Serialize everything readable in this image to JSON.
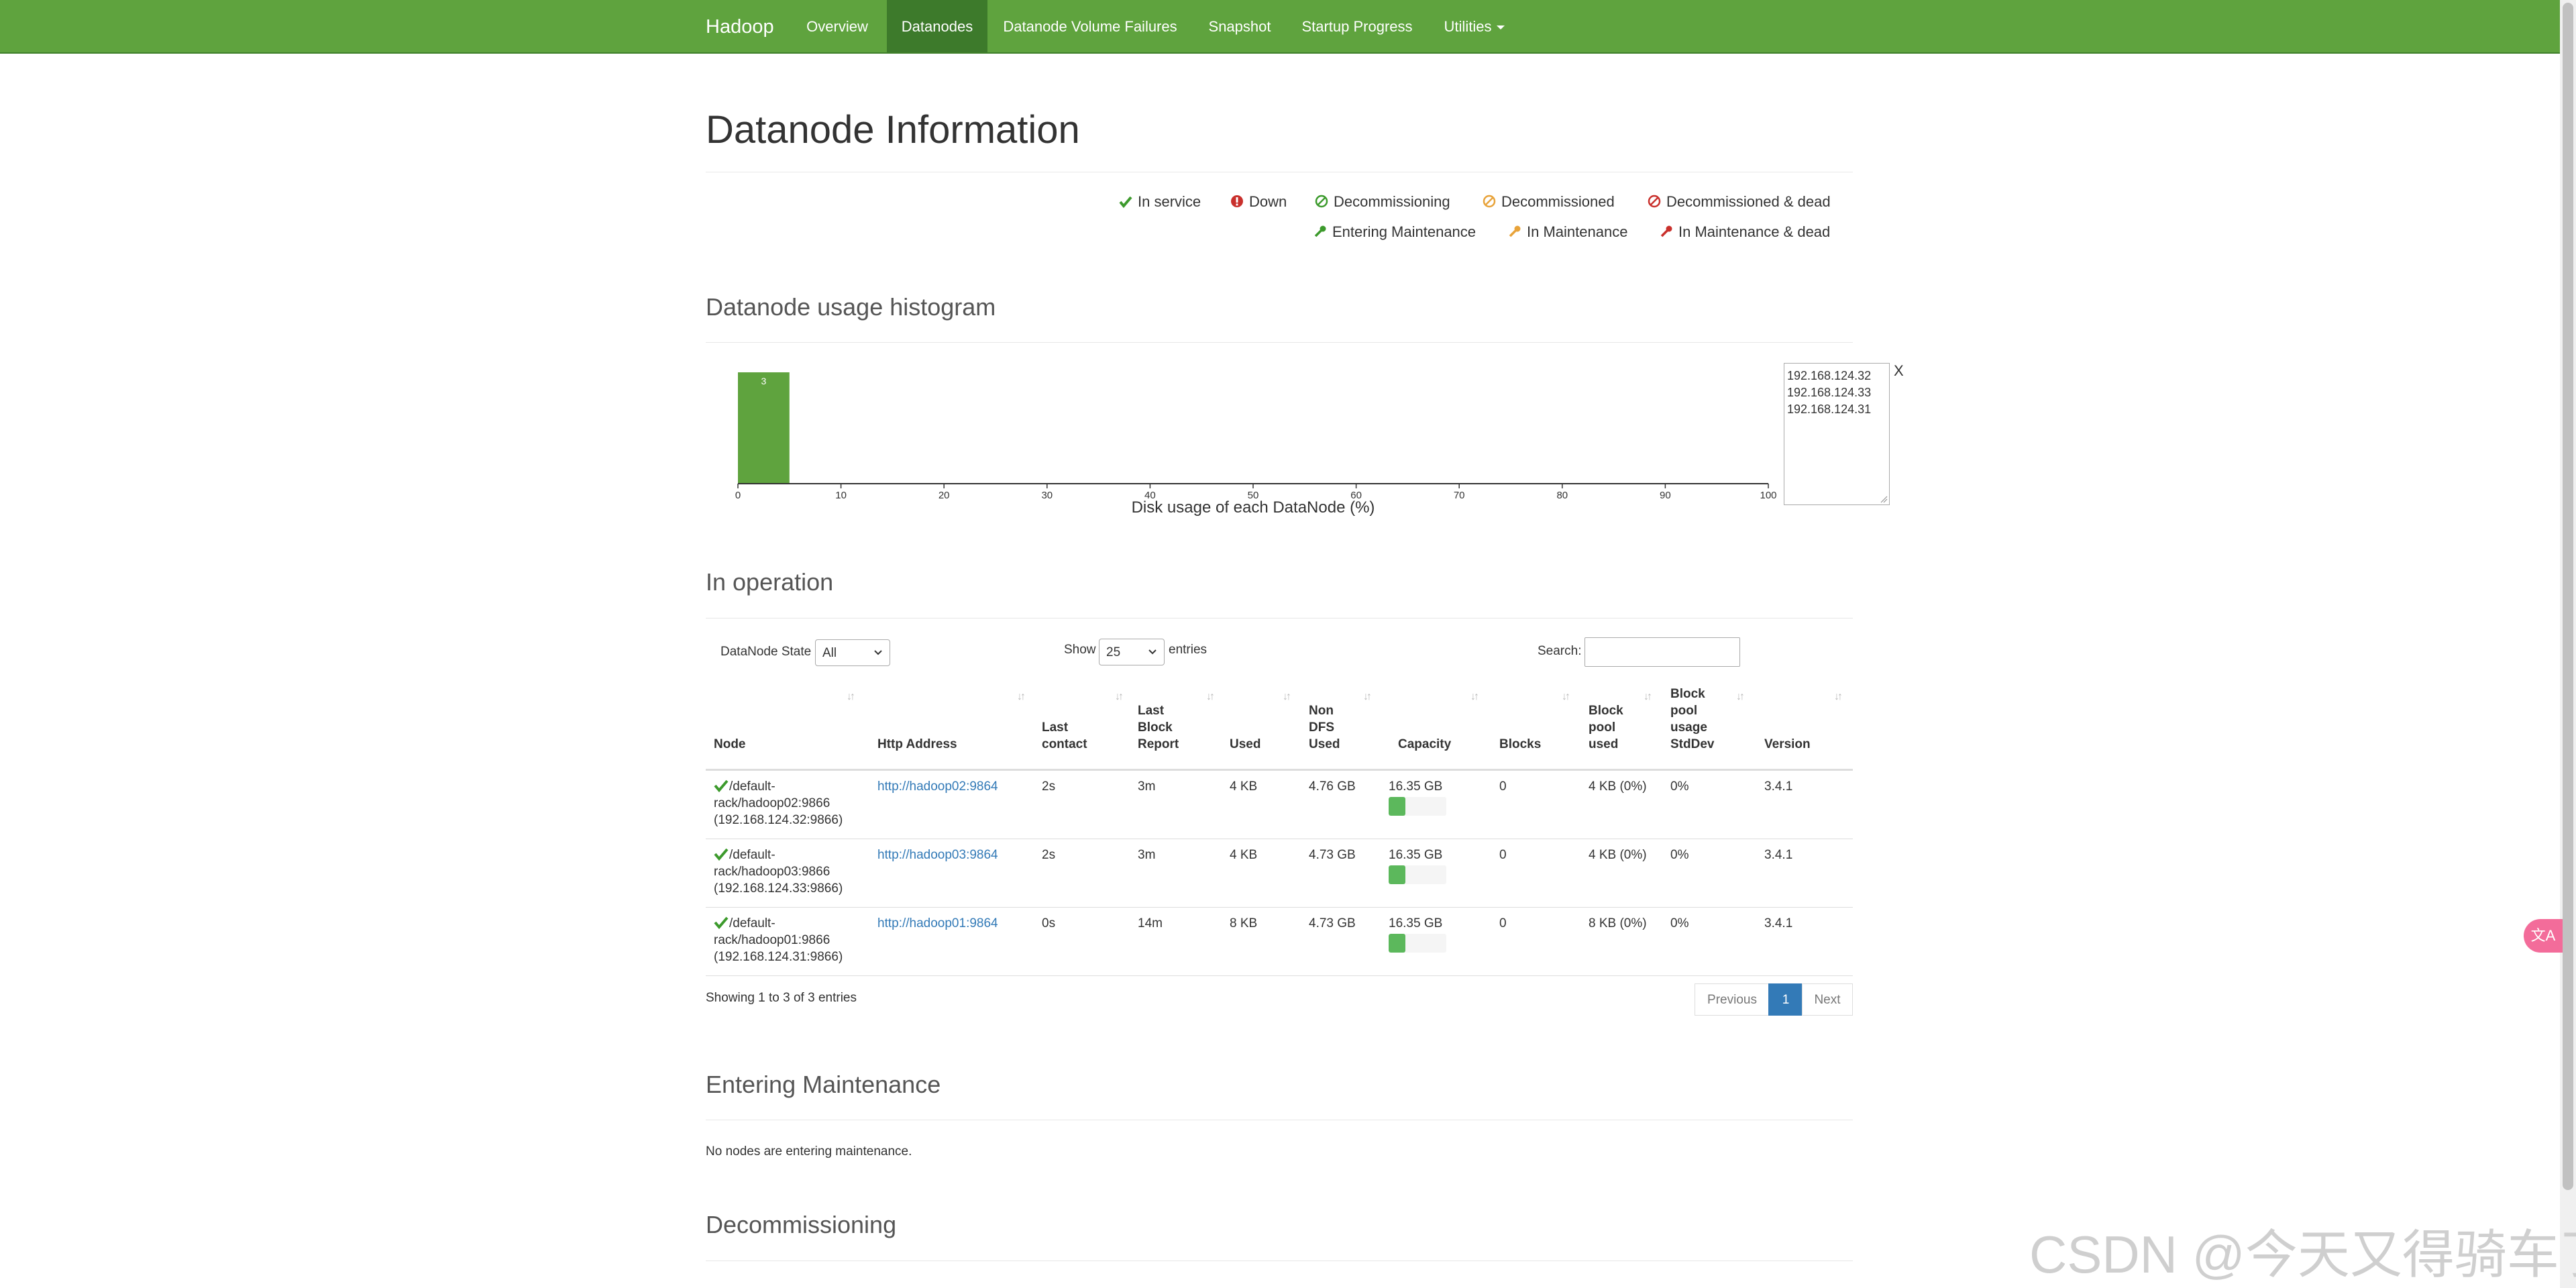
{
  "nav": {
    "brand": "Hadoop",
    "items": [
      {
        "label": "Overview",
        "active": false
      },
      {
        "label": "Datanodes",
        "active": true
      },
      {
        "label": "Datanode Volume Failures",
        "active": false
      },
      {
        "label": "Snapshot",
        "active": false
      },
      {
        "label": "Startup Progress",
        "active": false
      },
      {
        "label": "Utilities",
        "active": false
      }
    ]
  },
  "page": {
    "title": "Datanode Information"
  },
  "legend": [
    {
      "label": "In service",
      "icon": "check-icon",
      "color": "#3c9a2c"
    },
    {
      "label": "Down",
      "icon": "exclamation-circle-icon",
      "color": "#c9302c"
    },
    {
      "label": "Decommissioning",
      "icon": "ban-icon",
      "color": "#3c9a2c"
    },
    {
      "label": "Decommissioned",
      "icon": "ban-icon",
      "color": "#e8a33a"
    },
    {
      "label": "Decommissioned & dead",
      "icon": "ban-icon",
      "color": "#c9302c"
    },
    {
      "label": "Entering Maintenance",
      "icon": "wrench-icon",
      "color": "#3c9a2c"
    },
    {
      "label": "In Maintenance",
      "icon": "wrench-icon",
      "color": "#e8a33a"
    },
    {
      "label": "In Maintenance & dead",
      "icon": "wrench-icon",
      "color": "#c9302c"
    }
  ],
  "histogram": {
    "section_title": "Datanode usage histogram",
    "chart_data": {
      "type": "bar",
      "xlabel": "Disk usage of each DataNode (%)",
      "xlim": [
        0,
        100
      ],
      "ticks": [
        0,
        10,
        20,
        30,
        40,
        50,
        60,
        70,
        80,
        90,
        100
      ],
      "bins": [
        {
          "from": 0,
          "to": 5,
          "count": 3
        }
      ],
      "bar_color": "#5fa33e"
    },
    "hosts": [
      "192.168.124.32",
      "192.168.124.33",
      "192.168.124.31"
    ],
    "close_label": "X"
  },
  "operation": {
    "section_title": "In operation",
    "state_label": "DataNode State",
    "state_value": "All",
    "show_label": "Show",
    "show_value": "25",
    "entries_label": "entries",
    "search_label": "Search:",
    "columns": [
      [
        "Node"
      ],
      [
        "Http Address"
      ],
      [
        "Last",
        "contact"
      ],
      [
        "Last",
        "Block",
        "Report"
      ],
      [
        "Used"
      ],
      [
        "Non",
        "DFS",
        "Used"
      ],
      [
        "Capacity"
      ],
      [
        "Blocks"
      ],
      [
        "Block",
        "pool",
        "used"
      ],
      [
        "Block",
        "pool",
        "usage",
        "StdDev"
      ],
      [
        "Version"
      ]
    ],
    "rows": [
      {
        "node": [
          "/default-",
          "rack/hadoop02:9866",
          "(192.168.124.32:9866)"
        ],
        "http": "http://hadoop02:9864",
        "last_contact": "2s",
        "last_block_report": "3m",
        "used": "4 KB",
        "non_dfs_used": "4.76 GB",
        "capacity": "16.35 GB",
        "capacity_used_fraction": 0.29,
        "blocks": "0",
        "block_pool_used": "4 KB (0%)",
        "stddev": "0%",
        "version": "3.4.1"
      },
      {
        "node": [
          "/default-",
          "rack/hadoop03:9866",
          "(192.168.124.33:9866)"
        ],
        "http": "http://hadoop03:9864",
        "last_contact": "2s",
        "last_block_report": "3m",
        "used": "4 KB",
        "non_dfs_used": "4.73 GB",
        "capacity": "16.35 GB",
        "capacity_used_fraction": 0.29,
        "blocks": "0",
        "block_pool_used": "4 KB (0%)",
        "stddev": "0%",
        "version": "3.4.1"
      },
      {
        "node": [
          "/default-",
          "rack/hadoop01:9866",
          "(192.168.124.31:9866)"
        ],
        "http": "http://hadoop01:9864",
        "last_contact": "0s",
        "last_block_report": "14m",
        "used": "8 KB",
        "non_dfs_used": "4.73 GB",
        "capacity": "16.35 GB",
        "capacity_used_fraction": 0.29,
        "blocks": "0",
        "block_pool_used": "8 KB (0%)",
        "stddev": "0%",
        "version": "3.4.1"
      }
    ],
    "summary": "Showing 1 to 3 of 3 entries",
    "pagination": {
      "previous": "Previous",
      "current": "1",
      "next": "Next"
    }
  },
  "entering_maintenance": {
    "section_title": "Entering Maintenance",
    "message": "No nodes are entering maintenance."
  },
  "decommissioning": {
    "section_title": "Decommissioning"
  },
  "floating_button": {
    "label": "文A"
  },
  "watermark": "CSDN @今天又得骑车了"
}
